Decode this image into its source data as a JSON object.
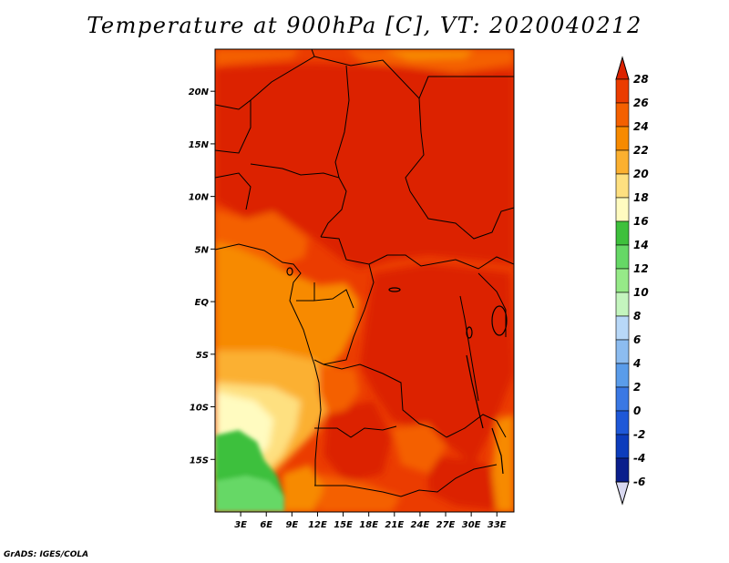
{
  "title": "Temperature at 900hPa [C], VT: 2020040212",
  "credit": "GrADS: IGES/COLA",
  "map": {
    "lon_range": [
      0,
      35
    ],
    "lat_range": [
      -20,
      24
    ],
    "lon_ticks": [
      "3E",
      "6E",
      "9E",
      "12E",
      "15E",
      "18E",
      "21E",
      "24E",
      "27E",
      "30E",
      "33E"
    ],
    "lon_tick_values": [
      3,
      6,
      9,
      12,
      15,
      18,
      21,
      24,
      27,
      30,
      33
    ],
    "lat_ticks": [
      "20N",
      "15N",
      "10N",
      "5N",
      "EQ",
      "5S",
      "10S",
      "15S"
    ],
    "lat_tick_values": [
      20,
      15,
      10,
      5,
      0,
      -5,
      -10,
      -15
    ]
  },
  "colorbar": {
    "labels": [
      "28",
      "26",
      "24",
      "22",
      "20",
      "18",
      "16",
      "14",
      "12",
      "10",
      "8",
      "6",
      "4",
      "2",
      "0",
      "-2",
      "-4",
      "-6"
    ],
    "colors": [
      "#dc2200",
      "#eb3c00",
      "#f46000",
      "#f78a00",
      "#fbb030",
      "#fee080",
      "#fffbc0",
      "#3ec03c",
      "#66d866",
      "#96ea88",
      "#c4f5be",
      "#b8d8f8",
      "#8cbcf0",
      "#5a9cea",
      "#3a78e4",
      "#1e58d8",
      "#0c3cbc",
      "#0a1e8c"
    ],
    "top_arrow_color": "#dc2200",
    "bottom_arrow_color": "#d8d8f0"
  }
}
